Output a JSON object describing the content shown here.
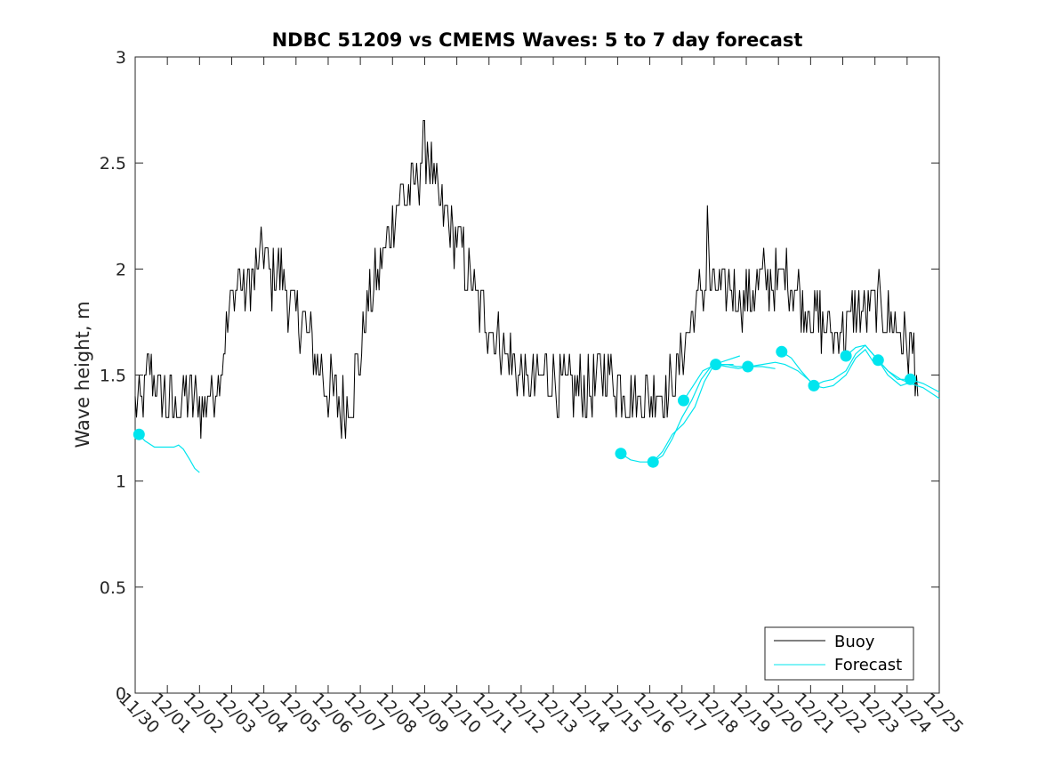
{
  "chart_data": {
    "type": "line",
    "title": "NDBC 51209 vs CMEMS Waves: 5 to 7 day forecast",
    "xlabel": "",
    "ylabel": "Wave height, m",
    "xlim": [
      "11/30",
      "12/25"
    ],
    "ylim": [
      0,
      3
    ],
    "x_tick_labels": [
      "11/30",
      "12/01",
      "12/02",
      "12/03",
      "12/04",
      "12/05",
      "12/06",
      "12/07",
      "12/08",
      "12/09",
      "12/10",
      "12/11",
      "12/12",
      "12/13",
      "12/14",
      "12/15",
      "12/16",
      "12/17",
      "12/18",
      "12/19",
      "12/20",
      "12/21",
      "12/22",
      "12/23",
      "12/24",
      "12/25"
    ],
    "y_ticks": [
      0,
      0.5,
      1,
      1.5,
      2,
      2.5,
      3
    ],
    "y_tick_labels": [
      "0",
      "0.5",
      "1",
      "1.5",
      "2",
      "2.5",
      "3"
    ],
    "grid": false,
    "legend": {
      "placement": "bottom-right",
      "entries": [
        {
          "label": "Buoy",
          "color": "#000000"
        },
        {
          "label": "Forecast",
          "color": "#00e5ee"
        }
      ]
    },
    "series": [
      {
        "name": "Buoy",
        "color": "#000000",
        "x_unit": "days since 11/30",
        "points": [
          [
            0,
            1.4
          ],
          [
            0.15,
            1.35
          ],
          [
            0.35,
            1.45
          ],
          [
            0.5,
            1.55
          ],
          [
            0.65,
            1.45
          ],
          [
            0.8,
            1.4
          ],
          [
            1.0,
            1.38
          ],
          [
            1.2,
            1.35
          ],
          [
            1.4,
            1.38
          ],
          [
            1.6,
            1.4
          ],
          [
            1.8,
            1.38
          ],
          [
            2.0,
            1.36
          ],
          [
            2.2,
            1.38
          ],
          [
            2.4,
            1.42
          ],
          [
            2.6,
            1.5
          ],
          [
            2.8,
            1.65
          ],
          [
            3.0,
            1.85
          ],
          [
            3.2,
            1.95
          ],
          [
            3.4,
            1.9
          ],
          [
            3.6,
            1.95
          ],
          [
            3.8,
            2.0
          ],
          [
            4.0,
            2.1
          ],
          [
            4.2,
            1.95
          ],
          [
            4.4,
            2.0
          ],
          [
            4.6,
            1.95
          ],
          [
            4.8,
            1.85
          ],
          [
            5.0,
            1.8
          ],
          [
            5.2,
            1.75
          ],
          [
            5.4,
            1.65
          ],
          [
            5.6,
            1.6
          ],
          [
            5.8,
            1.5
          ],
          [
            6.0,
            1.45
          ],
          [
            6.2,
            1.38
          ],
          [
            6.4,
            1.35
          ],
          [
            6.6,
            1.35
          ],
          [
            6.8,
            1.45
          ],
          [
            7.0,
            1.6
          ],
          [
            7.2,
            1.8
          ],
          [
            7.4,
            1.9
          ],
          [
            7.6,
            2.0
          ],
          [
            7.8,
            2.1
          ],
          [
            8.0,
            2.25
          ],
          [
            8.2,
            2.3
          ],
          [
            8.4,
            2.35
          ],
          [
            8.6,
            2.4
          ],
          [
            8.8,
            2.45
          ],
          [
            9.0,
            2.55
          ],
          [
            9.1,
            2.62
          ],
          [
            9.2,
            2.45
          ],
          [
            9.4,
            2.35
          ],
          [
            9.6,
            2.25
          ],
          [
            9.8,
            2.2
          ],
          [
            10.0,
            2.15
          ],
          [
            10.2,
            2.05
          ],
          [
            10.4,
            1.95
          ],
          [
            10.6,
            1.85
          ],
          [
            10.8,
            1.8
          ],
          [
            11.0,
            1.75
          ],
          [
            11.2,
            1.7
          ],
          [
            11.4,
            1.65
          ],
          [
            11.6,
            1.58
          ],
          [
            11.8,
            1.55
          ],
          [
            12.0,
            1.5
          ],
          [
            12.2,
            1.45
          ],
          [
            12.4,
            1.45
          ],
          [
            12.6,
            1.48
          ],
          [
            12.8,
            1.5
          ],
          [
            13.0,
            1.48
          ],
          [
            13.2,
            1.45
          ],
          [
            13.4,
            1.43
          ],
          [
            13.6,
            1.45
          ],
          [
            13.8,
            1.45
          ],
          [
            14.0,
            1.43
          ],
          [
            14.2,
            1.45
          ],
          [
            14.4,
            1.48
          ],
          [
            14.6,
            1.5
          ],
          [
            14.8,
            1.47
          ],
          [
            15.0,
            1.45
          ],
          [
            15.2,
            1.42
          ],
          [
            15.4,
            1.4
          ],
          [
            15.6,
            1.38
          ],
          [
            15.8,
            1.4
          ],
          [
            16.0,
            1.4
          ],
          [
            16.2,
            1.42
          ],
          [
            16.4,
            1.4
          ],
          [
            16.6,
            1.42
          ],
          [
            16.8,
            1.5
          ],
          [
            17.0,
            1.62
          ],
          [
            17.2,
            1.72
          ],
          [
            17.4,
            1.82
          ],
          [
            17.6,
            1.9
          ],
          [
            17.75,
            1.95
          ],
          [
            17.8,
            2.35
          ],
          [
            17.85,
            1.9
          ],
          [
            18.0,
            1.88
          ],
          [
            18.2,
            1.9
          ],
          [
            18.4,
            1.92
          ],
          [
            18.6,
            1.9
          ],
          [
            18.8,
            1.85
          ],
          [
            19.0,
            1.85
          ],
          [
            19.2,
            1.9
          ],
          [
            19.4,
            1.92
          ],
          [
            19.6,
            1.95
          ],
          [
            19.8,
            1.92
          ],
          [
            20.0,
            1.95
          ],
          [
            20.2,
            1.98
          ],
          [
            20.4,
            1.95
          ],
          [
            20.6,
            1.88
          ],
          [
            20.8,
            1.82
          ],
          [
            21.0,
            1.8
          ],
          [
            21.2,
            1.75
          ],
          [
            21.4,
            1.75
          ],
          [
            21.6,
            1.72
          ],
          [
            21.8,
            1.7
          ],
          [
            22.0,
            1.72
          ],
          [
            22.2,
            1.75
          ],
          [
            22.4,
            1.78
          ],
          [
            22.6,
            1.8
          ],
          [
            22.8,
            1.82
          ],
          [
            23.0,
            1.85
          ],
          [
            23.2,
            1.82
          ],
          [
            23.4,
            1.75
          ],
          [
            23.6,
            1.72
          ],
          [
            23.8,
            1.7
          ],
          [
            24.0,
            1.65
          ],
          [
            24.2,
            1.6
          ],
          [
            24.3,
            1.5
          ],
          [
            24.35,
            1.4
          ]
        ]
      },
      {
        "name": "Forecast",
        "color": "#00e5ee",
        "x_unit": "days since 11/30",
        "segments": [
          [
            [
              0.12,
              1.22
            ],
            [
              0.3,
              1.19
            ],
            [
              0.6,
              1.16
            ],
            [
              0.9,
              1.16
            ],
            [
              1.2,
              1.16
            ],
            [
              1.35,
              1.17
            ],
            [
              1.5,
              1.15
            ],
            [
              1.7,
              1.1
            ],
            [
              1.85,
              1.06
            ],
            [
              2.0,
              1.04
            ]
          ],
          [
            [
              15.1,
              1.13
            ],
            [
              15.4,
              1.1
            ],
            [
              15.7,
              1.09
            ],
            [
              16.1,
              1.09
            ],
            [
              16.4,
              1.12
            ],
            [
              16.7,
              1.2
            ],
            [
              17.0,
              1.3
            ],
            [
              17.3,
              1.38
            ],
            [
              17.6,
              1.48
            ],
            [
              17.9,
              1.54
            ],
            [
              18.2,
              1.55
            ],
            [
              18.6,
              1.55
            ]
          ],
          [
            [
              16.1,
              1.09
            ],
            [
              16.4,
              1.14
            ],
            [
              16.7,
              1.22
            ],
            [
              17.05,
              1.27
            ],
            [
              17.4,
              1.35
            ],
            [
              17.7,
              1.47
            ],
            [
              18.0,
              1.55
            ],
            [
              18.4,
              1.57
            ],
            [
              18.8,
              1.59
            ]
          ],
          [
            [
              17.05,
              1.38
            ],
            [
              17.35,
              1.45
            ],
            [
              17.65,
              1.52
            ],
            [
              18.05,
              1.55
            ],
            [
              18.4,
              1.54
            ],
            [
              18.75,
              1.53
            ],
            [
              19.1,
              1.54
            ],
            [
              19.5,
              1.54
            ],
            [
              19.9,
              1.53
            ]
          ],
          [
            [
              18.05,
              1.55
            ],
            [
              18.4,
              1.55
            ],
            [
              18.7,
              1.54
            ],
            [
              19.1,
              1.54
            ],
            [
              19.5,
              1.55
            ],
            [
              19.9,
              1.56
            ],
            [
              20.2,
              1.55
            ],
            [
              20.6,
              1.52
            ],
            [
              21.0,
              1.47
            ]
          ],
          [
            [
              20.1,
              1.61
            ],
            [
              20.4,
              1.58
            ],
            [
              20.7,
              1.52
            ],
            [
              21.1,
              1.45
            ],
            [
              21.4,
              1.44
            ],
            [
              21.7,
              1.45
            ],
            [
              22.1,
              1.5
            ],
            [
              22.4,
              1.58
            ],
            [
              22.7,
              1.62
            ],
            [
              23.0,
              1.55
            ]
          ],
          [
            [
              21.1,
              1.45
            ],
            [
              21.4,
              1.47
            ],
            [
              21.7,
              1.48
            ],
            [
              22.1,
              1.52
            ],
            [
              22.4,
              1.6
            ],
            [
              22.7,
              1.64
            ],
            [
              23.1,
              1.57
            ],
            [
              23.4,
              1.5
            ],
            [
              23.8,
              1.45
            ],
            [
              24.2,
              1.47
            ]
          ],
          [
            [
              22.1,
              1.59
            ],
            [
              22.4,
              1.63
            ],
            [
              22.7,
              1.64
            ],
            [
              23.1,
              1.57
            ],
            [
              23.4,
              1.52
            ],
            [
              23.8,
              1.48
            ],
            [
              24.1,
              1.46
            ],
            [
              24.5,
              1.44
            ],
            [
              25.0,
              1.39
            ]
          ],
          [
            [
              23.1,
              1.57
            ],
            [
              23.4,
              1.52
            ],
            [
              23.7,
              1.48
            ],
            [
              24.1,
              1.48
            ],
            [
              24.5,
              1.46
            ],
            [
              25.0,
              1.42
            ]
          ]
        ],
        "markers": [
          [
            0.12,
            1.22
          ],
          [
            15.1,
            1.13
          ],
          [
            16.1,
            1.09
          ],
          [
            17.05,
            1.38
          ],
          [
            18.05,
            1.55
          ],
          [
            19.05,
            1.54
          ],
          [
            20.1,
            1.61
          ],
          [
            21.1,
            1.45
          ],
          [
            22.1,
            1.59
          ],
          [
            23.1,
            1.57
          ],
          [
            24.1,
            1.48
          ]
        ]
      }
    ]
  }
}
